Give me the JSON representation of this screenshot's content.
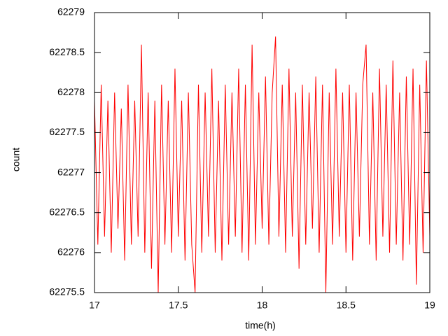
{
  "chart_data": {
    "type": "line",
    "xlabel": "time(h)",
    "ylabel": "count",
    "x": [
      17,
      17.02,
      17.04,
      17.06,
      17.08,
      17.1,
      17.12,
      17.14,
      17.16,
      17.18,
      17.2,
      17.22,
      17.24,
      17.26,
      17.28,
      17.3,
      17.32,
      17.34,
      17.36,
      17.38,
      17.4,
      17.42,
      17.44,
      17.46,
      17.48,
      17.5,
      17.52,
      17.54,
      17.56,
      17.58,
      17.6,
      17.62,
      17.64,
      17.66,
      17.68,
      17.7,
      17.72,
      17.74,
      17.76,
      17.78,
      17.8,
      17.82,
      17.84,
      17.86,
      17.88,
      17.9,
      17.92,
      17.94,
      17.96,
      17.98,
      18,
      18.02,
      18.04,
      18.06,
      18.08,
      18.1,
      18.12,
      18.14,
      18.16,
      18.18,
      18.2,
      18.22,
      18.24,
      18.26,
      18.28,
      18.3,
      18.32,
      18.34,
      18.36,
      18.38,
      18.4,
      18.42,
      18.44,
      18.46,
      18.48,
      18.5,
      18.52,
      18.54,
      18.56,
      18.58,
      18.6,
      18.62,
      18.64,
      18.66,
      18.68,
      18.7,
      18.72,
      18.74,
      18.76,
      18.78,
      18.8,
      18.82,
      18.84,
      18.86,
      18.88,
      18.9,
      18.92,
      18.94,
      18.96,
      18.98,
      19
    ],
    "series": [
      {
        "color": "#ff0000",
        "values": [
          62277.9,
          62276.1,
          62278.1,
          62276.2,
          62277.9,
          62276.0,
          62278.0,
          62276.3,
          62277.8,
          62275.9,
          62278.1,
          62276.1,
          62277.9,
          62276.2,
          62278.6,
          62276.0,
          62278.0,
          62275.8,
          62277.9,
          62275.5,
          62278.1,
          62276.1,
          62277.9,
          62276.0,
          62278.3,
          62276.2,
          62277.9,
          62275.9,
          62278.0,
          62276.1,
          62275.5,
          62278.1,
          62276.0,
          62278.0,
          62276.2,
          62278.3,
          62276.0,
          62277.9,
          62275.9,
          62278.1,
          62276.1,
          62278.0,
          62276.2,
          62278.3,
          62276.0,
          62278.1,
          62275.9,
          62278.6,
          62276.1,
          62278.0,
          62276.3,
          62278.2,
          62276.1,
          62278.0,
          62278.7,
          62276.2,
          62278.1,
          62276.0,
          62278.3,
          62276.2,
          62278.0,
          62275.8,
          62278.1,
          62276.1,
          62278.0,
          62276.3,
          62278.2,
          62276.0,
          62278.1,
          62275.5,
          62278.0,
          62276.1,
          62278.3,
          62276.2,
          62278.0,
          62276.0,
          62278.1,
          62275.9,
          62278.0,
          62276.2,
          62278.1,
          62278.6,
          62276.1,
          62278.0,
          62275.9,
          62278.3,
          62276.2,
          62278.1,
          62276.0,
          62278.4,
          62276.1,
          62278.0,
          62275.9,
          62278.2,
          62276.1,
          62278.3,
          62275.6,
          62278.1,
          62276.0,
          62278.4,
          62276.2
        ]
      }
    ],
    "xlim": [
      17,
      19
    ],
    "xticks": [
      17,
      17.5,
      18,
      18.5,
      19
    ],
    "ylim": [
      62275.5,
      62279
    ],
    "yticks": [
      62275.5,
      62276,
      62276.5,
      62277,
      62277.5,
      62278,
      62278.5,
      62279
    ],
    "grid": false
  }
}
